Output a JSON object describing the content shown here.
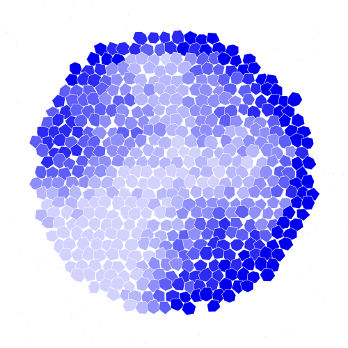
{
  "board": {
    "palette": {
      "deep": "#0000ee",
      "strong": "#2a2af4",
      "medium": "#5e5ef8",
      "soft": "#8f8ffb",
      "pale": "#b7b7fd",
      "faint": "#d2d2ff",
      "background": "#ffffff",
      "cell_border": "#ffffff"
    },
    "shape": "circle",
    "cell_style": "irregular-polygon-tiles"
  }
}
